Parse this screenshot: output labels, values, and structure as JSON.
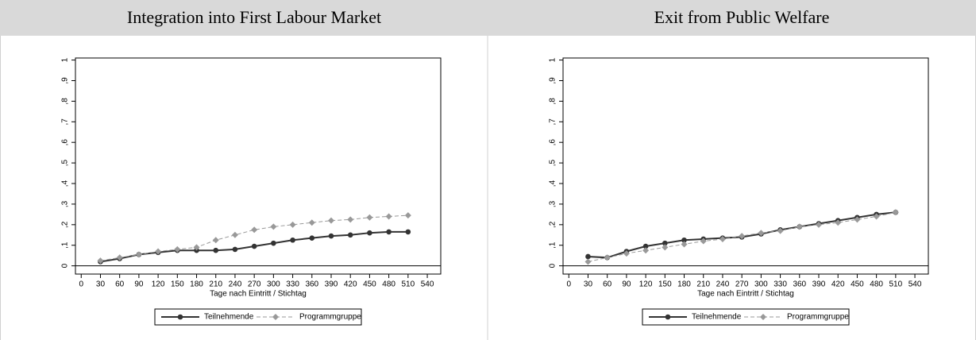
{
  "chart_data": [
    {
      "type": "line",
      "title": "Integration into First Labour Market",
      "xlabel": "Tage nach Eintritt / Stichtag",
      "x": [
        30,
        60,
        90,
        120,
        150,
        180,
        210,
        240,
        270,
        300,
        330,
        360,
        390,
        420,
        450,
        480,
        510
      ],
      "series": [
        {
          "name": "Teilnehmende",
          "color": "#333333",
          "style": "solid",
          "marker": "circle",
          "values": [
            0.02,
            0.035,
            0.055,
            0.065,
            0.075,
            0.075,
            0.075,
            0.08,
            0.095,
            0.11,
            0.125,
            0.135,
            0.145,
            0.15,
            0.16,
            0.165,
            0.165
          ]
        },
        {
          "name": "Programmgruppe",
          "color": "#999999",
          "style": "dashed",
          "marker": "diamond",
          "values": [
            0.025,
            0.04,
            0.055,
            0.07,
            0.08,
            0.09,
            0.125,
            0.15,
            0.175,
            0.19,
            0.2,
            0.21,
            0.22,
            0.225,
            0.235,
            0.24,
            0.245
          ]
        }
      ],
      "xlim": [
        -9,
        561
      ],
      "xticks": [
        0,
        30,
        60,
        90,
        120,
        150,
        180,
        210,
        240,
        270,
        300,
        330,
        360,
        390,
        420,
        450,
        480,
        510,
        540
      ],
      "ylim": [
        -0.04,
        1.01
      ],
      "yticks": [
        0,
        {
          "value": 0.1,
          "label": ",1"
        },
        {
          "value": 0.2,
          "label": ",2"
        },
        {
          "value": 0.3,
          "label": ",3"
        },
        {
          "value": 0.4,
          "label": ",4"
        },
        {
          "value": 0.5,
          "label": ",5"
        },
        {
          "value": 0.6,
          "label": ",6"
        },
        {
          "value": 0.7,
          "label": ",7"
        },
        {
          "value": 0.8,
          "label": ",8"
        },
        {
          "value": 0.9,
          "label": ",9"
        },
        1
      ],
      "legend": "bottom"
    },
    {
      "type": "line",
      "title": "Exit from Public Welfare",
      "xlabel": "Tage nach Eintritt / Stichtag",
      "x": [
        30,
        60,
        90,
        120,
        150,
        180,
        210,
        240,
        270,
        300,
        330,
        360,
        390,
        420,
        450,
        480,
        510
      ],
      "series": [
        {
          "name": "Teilnehmende",
          "color": "#333333",
          "style": "solid",
          "marker": "circle",
          "values": [
            0.045,
            0.04,
            0.07,
            0.095,
            0.11,
            0.125,
            0.13,
            0.135,
            0.14,
            0.155,
            0.175,
            0.19,
            0.205,
            0.22,
            0.235,
            0.25,
            0.26
          ]
        },
        {
          "name": "Programmgruppe",
          "color": "#999999",
          "style": "dashed",
          "marker": "diamond",
          "values": [
            0.02,
            0.04,
            0.06,
            0.075,
            0.09,
            0.105,
            0.12,
            0.13,
            0.145,
            0.16,
            0.17,
            0.19,
            0.2,
            0.21,
            0.225,
            0.24,
            0.26
          ]
        }
      ],
      "xlim": [
        -9,
        561
      ],
      "xticks": [
        0,
        30,
        60,
        90,
        120,
        150,
        180,
        210,
        240,
        270,
        300,
        330,
        360,
        390,
        420,
        450,
        480,
        510,
        540
      ],
      "ylim": [
        -0.04,
        1.01
      ],
      "yticks": [
        0,
        {
          "value": 0.1,
          "label": ",1"
        },
        {
          "value": 0.2,
          "label": ",2"
        },
        {
          "value": 0.3,
          "label": ",3"
        },
        {
          "value": 0.4,
          "label": ",4"
        },
        {
          "value": 0.5,
          "label": ",5"
        },
        {
          "value": 0.6,
          "label": ",6"
        },
        {
          "value": 0.7,
          "label": ",7"
        },
        {
          "value": 0.8,
          "label": ",8"
        },
        {
          "value": 0.9,
          "label": ",9"
        },
        1
      ],
      "legend": "bottom"
    }
  ]
}
